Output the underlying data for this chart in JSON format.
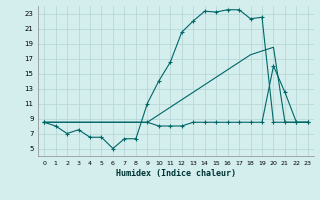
{
  "xlabel": "Humidex (Indice chaleur)",
  "bg_color": "#d4eeee",
  "grid_color": "#b8d8d8",
  "line_color": "#006666",
  "xlim": [
    -0.5,
    23.5
  ],
  "ylim": [
    4,
    24
  ],
  "yticks": [
    5,
    7,
    9,
    11,
    13,
    15,
    17,
    19,
    21,
    23
  ],
  "xticks": [
    0,
    1,
    2,
    3,
    4,
    5,
    6,
    7,
    8,
    9,
    10,
    11,
    12,
    13,
    14,
    15,
    16,
    17,
    18,
    19,
    20,
    21,
    22,
    23
  ],
  "line1_x": [
    0,
    1,
    2,
    3,
    4,
    5,
    6,
    7,
    8,
    9,
    10,
    11,
    12,
    13,
    14,
    15,
    16,
    17,
    18,
    19,
    20,
    21,
    22,
    23
  ],
  "line1_y": [
    8.5,
    8.0,
    7.0,
    7.5,
    6.5,
    6.5,
    5.0,
    6.3,
    6.3,
    11.0,
    14.0,
    16.5,
    20.5,
    22.0,
    23.3,
    23.2,
    23.5,
    23.5,
    22.3,
    22.5,
    8.5,
    8.5,
    8.5,
    8.5
  ],
  "line2_x": [
    0,
    9,
    10,
    11,
    12,
    13,
    14,
    15,
    16,
    17,
    18,
    19,
    20,
    21,
    22,
    23
  ],
  "line2_y": [
    8.5,
    8.5,
    8.0,
    8.0,
    8.0,
    8.5,
    8.5,
    8.5,
    8.5,
    8.5,
    8.5,
    8.5,
    16.0,
    12.5,
    8.5,
    8.5
  ],
  "line3_x": [
    0,
    9,
    10,
    11,
    12,
    13,
    14,
    15,
    16,
    17,
    18,
    19,
    20,
    21,
    22,
    23
  ],
  "line3_y": [
    8.5,
    8.5,
    9.5,
    10.5,
    11.5,
    12.5,
    13.5,
    14.5,
    15.5,
    16.5,
    17.5,
    18.0,
    18.5,
    8.5,
    8.5,
    8.5
  ]
}
